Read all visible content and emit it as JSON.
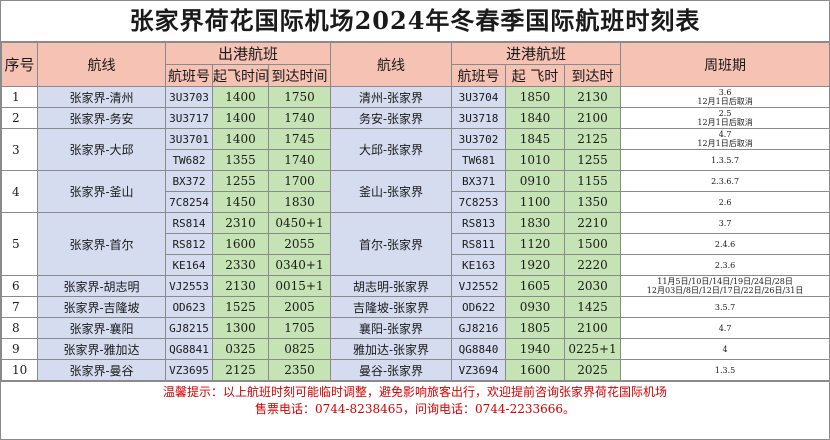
{
  "title": "张家界荷花国际机场2024年冬春季国际航班时刻表",
  "headers": {
    "seq": "序号",
    "route": "航线",
    "outbound": "出港航班",
    "inbound": "进港航班",
    "flight_no": "航班号",
    "out_dep": "起飞时间",
    "out_arr": "到达时间",
    "in_dep": "起 飞时",
    "in_arr": "到达时",
    "week": "周班期"
  },
  "rows": [
    {
      "seq": "1",
      "out_route": "张家界-清州",
      "in_route": "清州-张家界",
      "flights": [
        {
          "out_fn": "3U3703",
          "dep": "1400",
          "arr": "1750",
          "in_fn": "3U3704",
          "idep": "1850",
          "iarr": "2130",
          "week": "3.6\n12月1日后取消"
        }
      ]
    },
    {
      "seq": "2",
      "out_route": "张家界-务安",
      "in_route": "务安-张家界",
      "flights": [
        {
          "out_fn": "3U3717",
          "dep": "1400",
          "arr": "1740",
          "in_fn": "3U3718",
          "idep": "1840",
          "iarr": "2100",
          "week": "2.5\n12月1日后取消"
        }
      ]
    },
    {
      "seq": "3",
      "out_route": "张家界-大邱",
      "in_route": "大邱-张家界",
      "flights": [
        {
          "out_fn": "3U3701",
          "dep": "1400",
          "arr": "1745",
          "in_fn": "3U3702",
          "idep": "1845",
          "iarr": "2125",
          "week": "4.7\n12月1日后取消"
        },
        {
          "out_fn": "TW682",
          "dep": "1355",
          "arr": "1740",
          "in_fn": "TW681",
          "idep": "1010",
          "iarr": "1255",
          "week": "1.3.5.7"
        }
      ]
    },
    {
      "seq": "4",
      "out_route": "张家界-釜山",
      "in_route": "釜山-张家界",
      "flights": [
        {
          "out_fn": "BX372",
          "dep": "1255",
          "arr": "1700",
          "in_fn": "BX371",
          "idep": "0910",
          "iarr": "1155",
          "week": "2.3.6.7"
        },
        {
          "out_fn": "7C8254",
          "dep": "1450",
          "arr": "1830",
          "in_fn": "7C8253",
          "idep": "1100",
          "iarr": "1350",
          "week": "2.6"
        }
      ]
    },
    {
      "seq": "5",
      "out_route": "张家界-首尔",
      "in_route": "首尔-张家界",
      "flights": [
        {
          "out_fn": "RS814",
          "dep": "2310",
          "arr": "0450+1",
          "in_fn": "RS813",
          "idep": "1830",
          "iarr": "2210",
          "week": "3.7"
        },
        {
          "out_fn": "RS812",
          "dep": "1600",
          "arr": "2055",
          "in_fn": "RS811",
          "idep": "1120",
          "iarr": "1500",
          "week": "2.4.6"
        },
        {
          "out_fn": "KE164",
          "dep": "2330",
          "arr": "0340+1",
          "in_fn": "KE163",
          "idep": "1920",
          "iarr": "2220",
          "week": "2.3.6"
        }
      ]
    },
    {
      "seq": "6",
      "out_route": "张家界-胡志明",
      "in_route": "胡志明-张家界",
      "flights": [
        {
          "out_fn": "VJ2553",
          "dep": "2130",
          "arr": "0015+1",
          "in_fn": "VJ2552",
          "idep": "1605",
          "iarr": "2030",
          "week": "11月5日/10日/14日/19日/24日/28日\n12月03日/8日/12日/17日/22日/26日/31日"
        }
      ]
    },
    {
      "seq": "7",
      "out_route": "张家界-吉隆坡",
      "in_route": "吉隆坡-张家界",
      "flights": [
        {
          "out_fn": "OD623",
          "dep": "1525",
          "arr": "2005",
          "in_fn": "OD622",
          "idep": "0930",
          "iarr": "1425",
          "week": "3.5.7"
        }
      ]
    },
    {
      "seq": "8",
      "out_route": "张家界-襄阳",
      "in_route": "襄阳-张家界",
      "flights": [
        {
          "out_fn": "GJ8215",
          "dep": "1300",
          "arr": "1705",
          "in_fn": "GJ8216",
          "idep": "1805",
          "iarr": "2100",
          "week": "4.7"
        }
      ]
    },
    {
      "seq": "9",
      "out_route": "张家界-雅加达",
      "in_route": "雅加达-张家界",
      "flights": [
        {
          "out_fn": "QG8841",
          "dep": "0325",
          "arr": "0825",
          "in_fn": "QG8840",
          "idep": "1940",
          "iarr": "0225+1",
          "week": "4"
        }
      ]
    },
    {
      "seq": "10",
      "out_route": "张家界-曼谷",
      "in_route": "曼谷-张家界",
      "flights": [
        {
          "out_fn": "VZ3695",
          "dep": "2125",
          "arr": "2350",
          "in_fn": "VZ3694",
          "idep": "1600",
          "iarr": "2025",
          "week": "1.3.5"
        }
      ]
    }
  ],
  "footer": {
    "line1": "温馨提示：以上航班时刻可能临时调整，避免影响旅客出行，欢迎提前咨询张家界荷花国际机场",
    "line2": "售票电话：0744-8238465，问询电话：0744-2233666。"
  }
}
